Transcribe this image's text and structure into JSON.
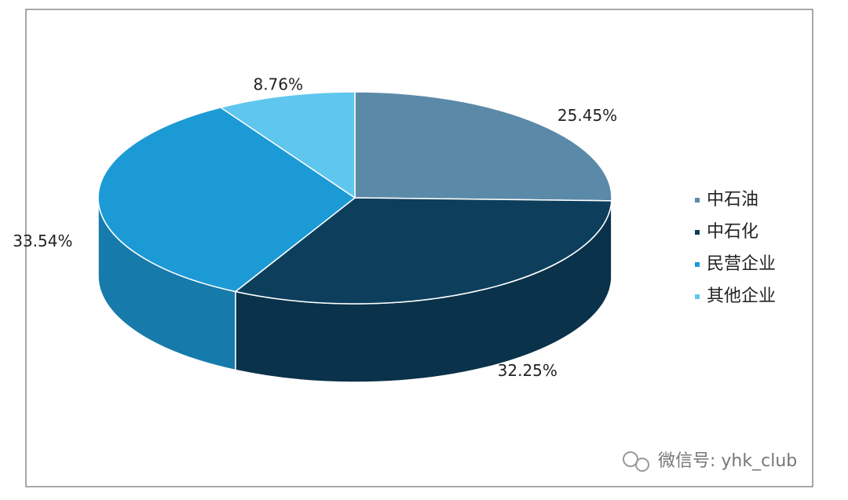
{
  "chart_data": {
    "type": "pie3d",
    "categories": [
      "中石油",
      "中石化",
      "民营企业",
      "其他企业"
    ],
    "values": [
      25.45,
      32.25,
      33.54,
      8.76
    ],
    "value_labels": [
      "25.45%",
      "32.25%",
      "33.54%",
      "8.76%"
    ],
    "colors": [
      "#5b8aa9",
      "#0d3f5d",
      "#1c9ad6",
      "#5fc6ee"
    ],
    "legend": "right"
  },
  "watermark": "微信号: yhk_club"
}
